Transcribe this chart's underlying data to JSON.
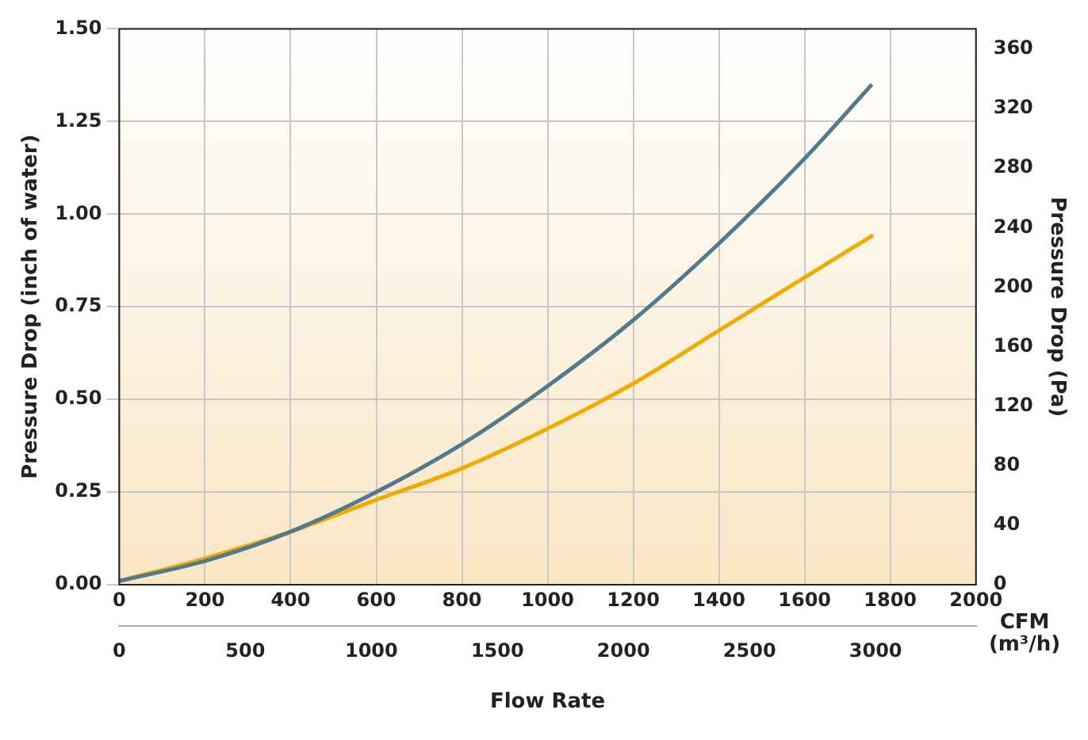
{
  "chart_data": {
    "type": "line",
    "xlabel": "CFM",
    "x2label": "(m³/h)",
    "ylabel": "Pressure Drop (inch of water)",
    "y2label": "Pressure Drop (Pa)",
    "annotations": [
      "Flow Rate"
    ],
    "x": [
      0,
      200,
      400,
      600,
      800,
      1000,
      1200,
      1400,
      1600,
      1757
    ],
    "series": [
      {
        "color": "#4f7a8f",
        "values": [
          0.01,
          0.064,
          0.143,
          0.25,
          0.379,
          0.536,
          0.714,
          0.921,
          1.15,
          1.35
        ]
      },
      {
        "color": "#f2a900",
        "x": [
          0,
          200,
          400,
          600,
          800,
          1000,
          1200,
          1400,
          1600,
          1760
        ],
        "values": [
          0.01,
          0.071,
          0.143,
          0.229,
          0.314,
          0.421,
          0.543,
          0.686,
          0.829,
          0.943
        ]
      }
    ],
    "xlim": [
      0,
      2000
    ],
    "xticks": [
      0,
      200,
      400,
      600,
      800,
      1000,
      1200,
      1400,
      1600,
      1800,
      2000
    ],
    "x2lim": [
      0,
      3398
    ],
    "x2ticks": [
      0,
      500,
      1000,
      1500,
      2000,
      2500,
      3000
    ],
    "ylim": [
      0,
      1.5
    ],
    "yticks": [
      {
        "value": 0,
        "label": "0.00"
      },
      {
        "value": 0.25,
        "label": "0.25"
      },
      {
        "value": 0.5,
        "label": "0.50"
      },
      {
        "value": 0.75,
        "label": "0.75"
      },
      {
        "value": 1,
        "label": "1.00"
      },
      {
        "value": 1.25,
        "label": "1.25"
      },
      {
        "value": 1.5,
        "label": "1.50"
      }
    ],
    "y2lim": [
      0,
      373.6
    ],
    "y2ticks": [
      0,
      40,
      80,
      120,
      160,
      200,
      240,
      280,
      320,
      360
    ],
    "grid": true,
    "legend": false,
    "marker": "none",
    "line_style": "solid"
  }
}
